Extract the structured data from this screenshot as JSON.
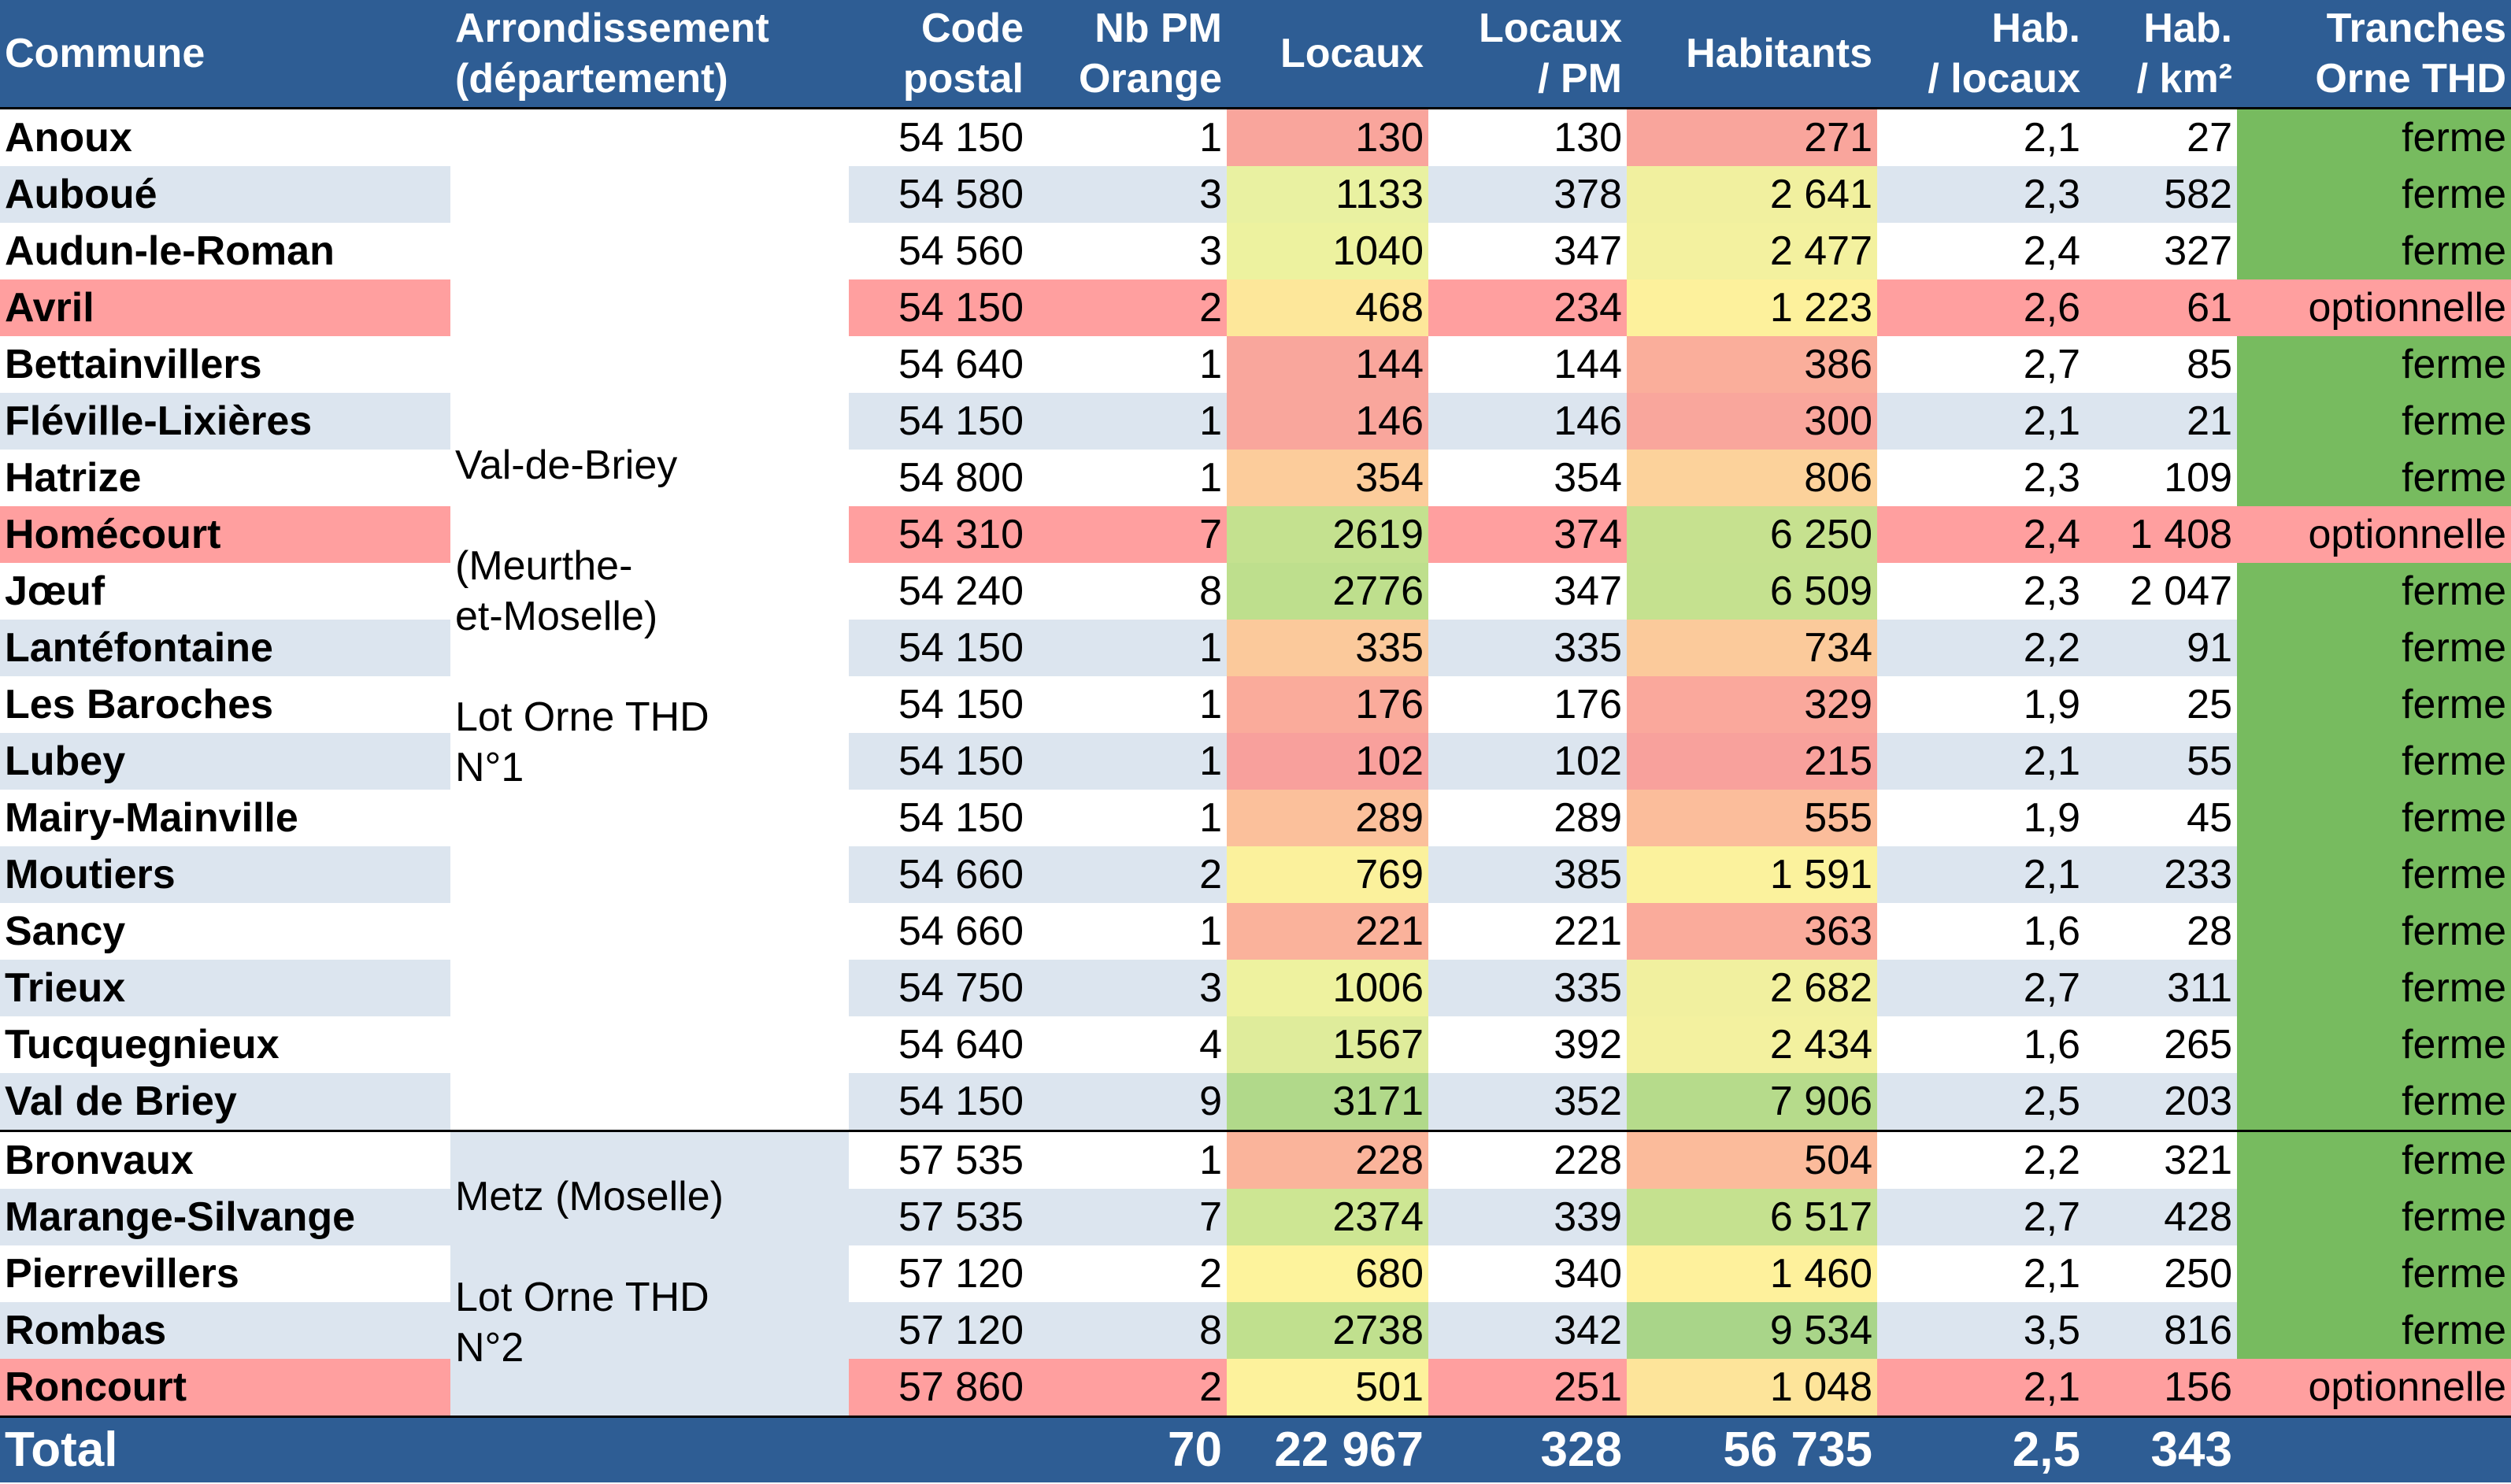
{
  "header": {
    "commune": "Commune",
    "arrondissement": [
      "Arrondissement",
      "(département)"
    ],
    "code_postal": [
      "Code",
      "postal"
    ],
    "nb_pm": [
      "Nb PM",
      "Orange"
    ],
    "locaux": "Locaux",
    "locaux_pm": [
      "Locaux",
      "/ PM"
    ],
    "habitants": "Habitants",
    "hab_locaux": [
      "Hab.",
      "/ locaux"
    ],
    "hab_km2": [
      "Hab.",
      "/ km²"
    ],
    "tranches": [
      "Tranches",
      "Orne THD"
    ]
  },
  "groups": [
    {
      "lines": [
        "Val-de-Briey",
        "",
        "(Meurthe-",
        "et-Moselle)",
        "",
        "Lot Orne THD",
        "N°1"
      ]
    },
    {
      "lines": [
        "Metz (Moselle)",
        "",
        "Lot Orne THD",
        "N°2"
      ]
    }
  ],
  "rows": [
    {
      "commune": "Anoux",
      "cp": "54 150",
      "pm": "1",
      "locaux": "130",
      "locaux_pm": "130",
      "habitants": "271",
      "hab_locaux": "2,1",
      "hab_km2": "27",
      "tranche": "ferme",
      "loc_color": "#f9a59c",
      "hab_color": "#f9a59c"
    },
    {
      "commune": "Auboué",
      "cp": "54 580",
      "pm": "3",
      "locaux": "1133",
      "locaux_pm": "378",
      "habitants": "2 641",
      "hab_locaux": "2,3",
      "hab_km2": "582",
      "tranche": "ferme",
      "loc_color": "#e9f1a1",
      "hab_color": "#f1f09f"
    },
    {
      "commune": "Audun-le-Roman",
      "cp": "54 560",
      "pm": "3",
      "locaux": "1040",
      "locaux_pm": "347",
      "habitants": "2 477",
      "hab_locaux": "2,4",
      "hab_km2": "327",
      "tranche": "ferme",
      "loc_color": "#edf29f",
      "hab_color": "#f3f19f"
    },
    {
      "commune": "Avril",
      "cp": "54 150",
      "pm": "2",
      "locaux": "468",
      "locaux_pm": "234",
      "habitants": "1 223",
      "hab_locaux": "2,6",
      "hab_km2": "61",
      "tranche": "optionnelle",
      "loc_color": "#fde79a",
      "hab_color": "#fdf19c"
    },
    {
      "commune": "Bettainvillers",
      "cp": "54 640",
      "pm": "1",
      "locaux": "144",
      "locaux_pm": "144",
      "habitants": "386",
      "hab_locaux": "2,7",
      "hab_km2": "85",
      "tranche": "ferme",
      "loc_color": "#f9a69c",
      "hab_color": "#faae9b"
    },
    {
      "commune": "Fléville-Lixières",
      "cp": "54 150",
      "pm": "1",
      "locaux": "146",
      "locaux_pm": "146",
      "habitants": "300",
      "hab_locaux": "2,1",
      "hab_km2": "21",
      "tranche": "ferme",
      "loc_color": "#f9a69c",
      "hab_color": "#f9a69c"
    },
    {
      "commune": "Hatrize",
      "cp": "54 800",
      "pm": "1",
      "locaux": "354",
      "locaux_pm": "354",
      "habitants": "806",
      "hab_locaux": "2,3",
      "hab_km2": "109",
      "tranche": "ferme",
      "loc_color": "#fccc9b",
      "hab_color": "#fcd29b"
    },
    {
      "commune": "Homécourt",
      "cp": "54 310",
      "pm": "7",
      "locaux": "2619",
      "locaux_pm": "374",
      "habitants": "6 250",
      "hab_locaux": "2,4",
      "hab_km2": "1 408",
      "tranche": "optionnelle",
      "loc_color": "#c4e18f",
      "hab_color": "#c6e18f"
    },
    {
      "commune": "Jœuf",
      "cp": "54 240",
      "pm": "8",
      "locaux": "2776",
      "locaux_pm": "347",
      "habitants": "6 509",
      "hab_locaux": "2,3",
      "hab_km2": "2 047",
      "tranche": "ferme",
      "loc_color": "#bedf8d",
      "hab_color": "#c5e18f"
    },
    {
      "commune": "Lantéfontaine",
      "cp": "54 150",
      "pm": "1",
      "locaux": "335",
      "locaux_pm": "335",
      "habitants": "734",
      "hab_locaux": "2,2",
      "hab_km2": "91",
      "tranche": "ferme",
      "loc_color": "#fbc99b",
      "hab_color": "#fbca9b"
    },
    {
      "commune": "Les Baroches",
      "cp": "54 150",
      "pm": "1",
      "locaux": "176",
      "locaux_pm": "176",
      "habitants": "329",
      "hab_locaux": "1,9",
      "hab_km2": "25",
      "tranche": "ferme",
      "loc_color": "#faab9b",
      "hab_color": "#faa89c"
    },
    {
      "commune": "Lubey",
      "cp": "54 150",
      "pm": "1",
      "locaux": "102",
      "locaux_pm": "102",
      "habitants": "215",
      "hab_locaux": "2,1",
      "hab_km2": "55",
      "tranche": "ferme",
      "loc_color": "#f8a09c",
      "hab_color": "#f8a19c"
    },
    {
      "commune": "Mairy-Mainville",
      "cp": "54 150",
      "pm": "1",
      "locaux": "289",
      "locaux_pm": "289",
      "habitants": "555",
      "hab_locaux": "1,9",
      "hab_km2": "45",
      "tranche": "ferme",
      "loc_color": "#fbc09b",
      "hab_color": "#fbbd9b"
    },
    {
      "commune": "Moutiers",
      "cp": "54 660",
      "pm": "2",
      "locaux": "769",
      "locaux_pm": "385",
      "habitants": "1 591",
      "hab_locaux": "2,1",
      "hab_km2": "233",
      "tranche": "ferme",
      "loc_color": "#fbf19c",
      "hab_color": "#fbf29d"
    },
    {
      "commune": "Sancy",
      "cp": "54 660",
      "pm": "1",
      "locaux": "221",
      "locaux_pm": "221",
      "habitants": "363",
      "hab_locaux": "1,6",
      "hab_km2": "28",
      "tranche": "ferme",
      "loc_color": "#fab29b",
      "hab_color": "#faab9b"
    },
    {
      "commune": "Trieux",
      "cp": "54 750",
      "pm": "3",
      "locaux": "1006",
      "locaux_pm": "335",
      "habitants": "2 682",
      "hab_locaux": "2,7",
      "hab_km2": "311",
      "tranche": "ferme",
      "loc_color": "#eef29f",
      "hab_color": "#f1f09f"
    },
    {
      "commune": "Tucquegnieux",
      "cp": "54 640",
      "pm": "4",
      "locaux": "1567",
      "locaux_pm": "392",
      "habitants": "2 434",
      "hab_locaux": "1,6",
      "hab_km2": "265",
      "tranche": "ferme",
      "loc_color": "#dfec9b",
      "hab_color": "#f3f19f"
    },
    {
      "commune": "Val de Briey",
      "cp": "54 150",
      "pm": "9",
      "locaux": "3171",
      "locaux_pm": "352",
      "habitants": "7 906",
      "hab_locaux": "2,5",
      "hab_km2": "203",
      "tranche": "ferme",
      "loc_color": "#b1d98a",
      "hab_color": "#b6db8b"
    },
    {
      "commune": "Bronvaux",
      "cp": "57 535",
      "pm": "1",
      "locaux": "228",
      "locaux_pm": "228",
      "habitants": "504",
      "hab_locaux": "2,2",
      "hab_km2": "321",
      "tranche": "ferme",
      "loc_color": "#fab49b",
      "hab_color": "#fbbb9b"
    },
    {
      "commune": "Marange-Silvange",
      "cp": "57 535",
      "pm": "7",
      "locaux": "2374",
      "locaux_pm": "339",
      "habitants": "6 517",
      "hab_locaux": "2,7",
      "hab_km2": "428",
      "tranche": "ferme",
      "loc_color": "#cde693",
      "hab_color": "#c5e18f"
    },
    {
      "commune": "Pierrevillers",
      "cp": "57 120",
      "pm": "2",
      "locaux": "680",
      "locaux_pm": "340",
      "habitants": "1 460",
      "hab_locaux": "2,1",
      "hab_km2": "250",
      "tranche": "ferme",
      "loc_color": "#fdf39c",
      "hab_color": "#fef19c"
    },
    {
      "commune": "Rombas",
      "cp": "57 120",
      "pm": "8",
      "locaux": "2738",
      "locaux_pm": "342",
      "habitants": "9 534",
      "hab_locaux": "3,5",
      "hab_km2": "816",
      "tranche": "ferme",
      "loc_color": "#c0e08e",
      "hab_color": "#a9d589"
    },
    {
      "commune": "Roncourt",
      "cp": "57 860",
      "pm": "2",
      "locaux": "501",
      "locaux_pm": "251",
      "habitants": "1 048",
      "hab_locaux": "2,1",
      "hab_km2": "156",
      "tranche": "optionnelle",
      "loc_color": "#fdf29c",
      "hab_color": "#fde49a"
    }
  ],
  "total": {
    "label": "Total",
    "pm": "70",
    "locaux": "22 967",
    "locaux_pm": "328",
    "habitants": "56 735",
    "hab_locaux": "2,5",
    "hab_km2": "343"
  },
  "colors": {
    "header_bg": "#2e5d94",
    "row_alt": "#dce5ef",
    "optional_row": "#ff9f9f",
    "ferme_green": "#77bb5f"
  }
}
